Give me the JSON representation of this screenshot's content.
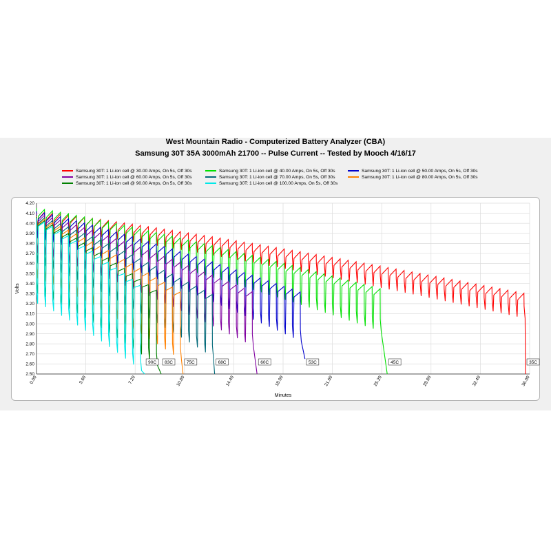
{
  "chart_data": {
    "type": "line",
    "title": "West Mountain Radio - Computerized Battery Analyzer (CBA)",
    "subtitle": "Samsung 30T 35A 3000mAh 21700 -- Pulse Current -- Tested by Mooch 4/16/17",
    "xlabel": "Minutes",
    "ylabel": "Volts",
    "xlim": [
      0,
      36
    ],
    "ylim": [
      2.5,
      4.2
    ],
    "x_ticks": [
      "0.00",
      "3.60",
      "7.20",
      "10.80",
      "14.40",
      "18.00",
      "21.60",
      "25.20",
      "28.80",
      "32.40",
      "36.00"
    ],
    "y_ticks": [
      "2.50",
      "2.60",
      "2.70",
      "2.80",
      "2.90",
      "3.00",
      "3.10",
      "3.20",
      "3.30",
      "3.40",
      "3.50",
      "3.60",
      "3.70",
      "3.80",
      "3.90",
      "4.00",
      "4.10",
      "4.20"
    ],
    "grid": true,
    "legend_position": "top",
    "series": [
      {
        "name": "Samsung 30T: 1 Li-ion cell @ 30.00 Amps, On 5s, Off 30s",
        "color": "#ff0000",
        "end_minutes": 35.7,
        "rest_start": 4.12,
        "rest_end": 3.3,
        "load_start": 3.95,
        "load_end": 3.05,
        "cutoff": 2.5,
        "end_label": "35C"
      },
      {
        "name": "Samsung 30T: 1 Li-ion cell @ 40.00 Amps, On 5s, Off 30s",
        "color": "#00e000",
        "end_minutes": 25.6,
        "rest_start": 4.15,
        "rest_end": 3.33,
        "load_start": 3.9,
        "load_end": 2.9,
        "cutoff": 2.5,
        "end_label": "45C"
      },
      {
        "name": "Samsung 30T: 1 Li-ion cell @ 50.00 Amps, On 5s, Off 30s",
        "color": "#0000cc",
        "end_minutes": 19.6,
        "rest_start": 4.12,
        "rest_end": 3.3,
        "load_start": 3.85,
        "load_end": 2.8,
        "cutoff": 2.65,
        "end_label": "53C"
      },
      {
        "name": "Samsung 30T: 1 Li-ion cell @ 60.00 Amps, On 5s, Off 30s",
        "color": "#8000a0",
        "end_minutes": 16.1,
        "rest_start": 4.1,
        "rest_end": 3.3,
        "load_start": 3.7,
        "load_end": 2.75,
        "cutoff": 2.5,
        "end_label": "60C"
      },
      {
        "name": "Samsung 30T: 1 Li-ion cell @ 70.00 Amps, On 5s, Off 30s",
        "color": "#006878",
        "end_minutes": 13.0,
        "rest_start": 4.08,
        "rest_end": 3.28,
        "load_start": 3.6,
        "load_end": 2.65,
        "cutoff": 2.5,
        "end_label": "68C"
      },
      {
        "name": "Samsung 30T: 1 Li-ion cell @ 80.00 Amps, On 5s, Off 30s",
        "color": "#ff8000",
        "end_minutes": 10.7,
        "rest_start": 4.07,
        "rest_end": 3.3,
        "load_start": 3.45,
        "load_end": 2.62,
        "cutoff": 2.5,
        "end_label": "75C"
      },
      {
        "name": "Samsung 30T: 1 Li-ion cell @ 90.00 Amps, On 5s, Off 30s",
        "color": "#008000",
        "end_minutes": 9.1,
        "rest_start": 4.06,
        "rest_end": 3.3,
        "load_start": 3.3,
        "load_end": 2.55,
        "cutoff": 2.5,
        "end_label": "83C"
      },
      {
        "name": "Samsung 30T: 1 Li-ion cell @ 100.00 Amps, On 5s, Off 30s",
        "color": "#00e8e8",
        "end_minutes": 7.9,
        "rest_start": 4.05,
        "rest_end": 3.35,
        "load_start": 3.2,
        "load_end": 2.5,
        "cutoff": 2.5,
        "end_label": "90C"
      }
    ]
  }
}
